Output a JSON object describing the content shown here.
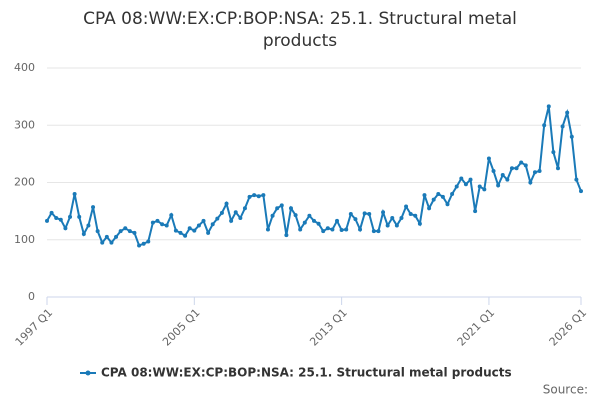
{
  "chart_data": {
    "type": "line",
    "title": "CPA 08:WW:EX:CP:BOP:NSA: 25.1. Structural metal products",
    "source": "Source:",
    "categories": [
      "1997 Q1",
      null,
      null,
      null,
      null,
      null,
      null,
      null,
      null,
      null,
      null,
      null,
      null,
      null,
      null,
      null,
      null,
      null,
      null,
      null,
      null,
      null,
      null,
      null,
      null,
      null,
      null,
      null,
      null,
      null,
      null,
      null,
      "2005 Q1",
      null,
      null,
      null,
      null,
      null,
      null,
      null,
      null,
      null,
      null,
      null,
      null,
      null,
      null,
      null,
      null,
      null,
      null,
      null,
      null,
      null,
      null,
      null,
      null,
      null,
      null,
      null,
      null,
      null,
      null,
      null,
      "2013 Q1",
      null,
      null,
      null,
      null,
      null,
      null,
      null,
      null,
      null,
      null,
      null,
      null,
      null,
      null,
      null,
      null,
      null,
      null,
      null,
      null,
      null,
      null,
      null,
      null,
      null,
      null,
      null,
      null,
      null,
      null,
      null,
      "2021 Q1",
      null,
      null,
      null,
      null,
      null,
      null,
      null,
      null,
      null,
      null,
      null,
      null,
      null,
      null,
      null,
      null,
      null,
      null,
      null,
      "2026 Q1"
    ],
    "series": [
      {
        "name": "CPA 08:WW:EX:CP:BOP:NSA: 25.1. Structural metal products",
        "color": "#1a7ab8",
        "values": [
          133,
          147,
          138,
          135,
          120,
          140,
          180,
          140,
          110,
          125,
          157,
          115,
          95,
          105,
          95,
          105,
          115,
          120,
          115,
          112,
          90,
          93,
          97,
          130,
          133,
          127,
          125,
          143,
          116,
          112,
          107,
          120,
          116,
          125,
          133,
          112,
          127,
          137,
          147,
          163,
          133,
          148,
          138,
          155,
          175,
          178,
          176,
          178,
          118,
          142,
          155,
          160,
          108,
          155,
          143,
          118,
          130,
          142,
          133,
          128,
          115,
          120,
          118,
          133,
          117,
          118,
          145,
          136,
          118,
          146,
          145,
          115,
          115,
          148,
          125,
          138,
          125,
          138,
          158,
          145,
          142,
          128,
          178,
          155,
          170,
          180,
          175,
          162,
          180,
          193,
          207,
          197,
          205,
          150,
          193,
          188,
          242,
          220,
          195,
          213,
          205,
          225,
          225,
          235,
          230,
          200,
          218,
          220,
          300,
          333,
          253,
          225,
          298,
          322,
          280,
          205,
          185
        ]
      }
    ],
    "ylim": [
      0,
      400
    ],
    "yticks": [
      0,
      100,
      200,
      300,
      400
    ],
    "grid": true
  }
}
